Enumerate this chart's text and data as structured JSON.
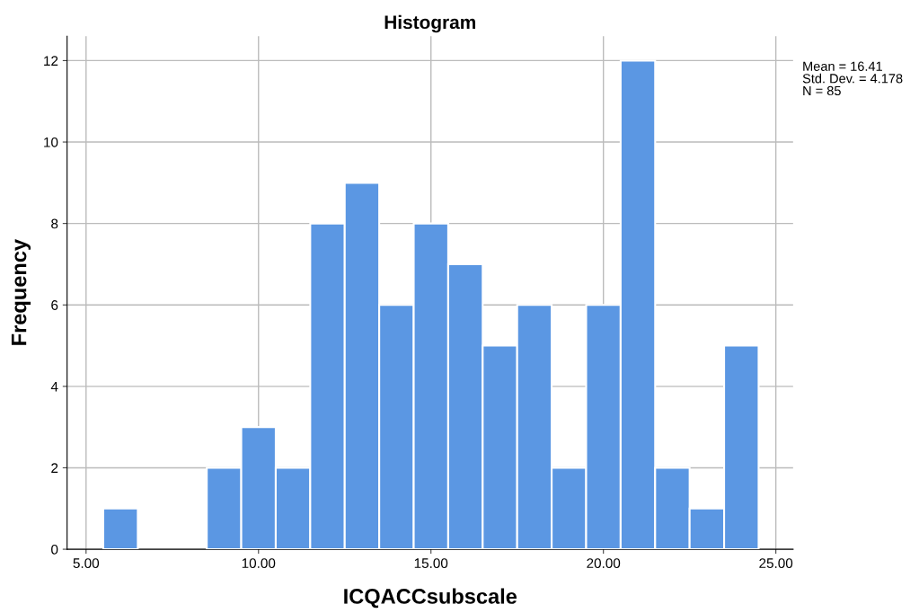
{
  "chart_data": {
    "type": "histogram",
    "title": "Histogram",
    "xlabel": "ICQACCsubscale",
    "ylabel": "Frequency",
    "bins": [
      5.5,
      6.5,
      7.5,
      8.5,
      9.5,
      10.5,
      11.5,
      12.5,
      13.5,
      14.5,
      15.5,
      16.5,
      17.5,
      18.5,
      19.5,
      20.5,
      21.5,
      22.5,
      23.5,
      24.5
    ],
    "values": [
      1,
      0,
      0,
      2,
      3,
      2,
      8,
      9,
      6,
      8,
      7,
      5,
      6,
      2,
      6,
      12,
      2,
      1,
      5
    ],
    "color": "#5b97e3",
    "xlim": [
      4.45,
      25.5
    ],
    "xticks": [
      {
        "value": 5,
        "label": "5.00"
      },
      {
        "value": 10,
        "label": "10.00"
      },
      {
        "value": 15,
        "label": "15.00"
      },
      {
        "value": 20,
        "label": "20.00"
      },
      {
        "value": 25,
        "label": "25.00"
      }
    ],
    "ylim": [
      0,
      12.6
    ],
    "yticks": [
      0,
      2,
      4,
      6,
      8,
      10,
      12
    ],
    "grid": true,
    "annotations": [
      "Mean = 16.41\nStd. Dev. = 4.178\nN = 85"
    ]
  }
}
